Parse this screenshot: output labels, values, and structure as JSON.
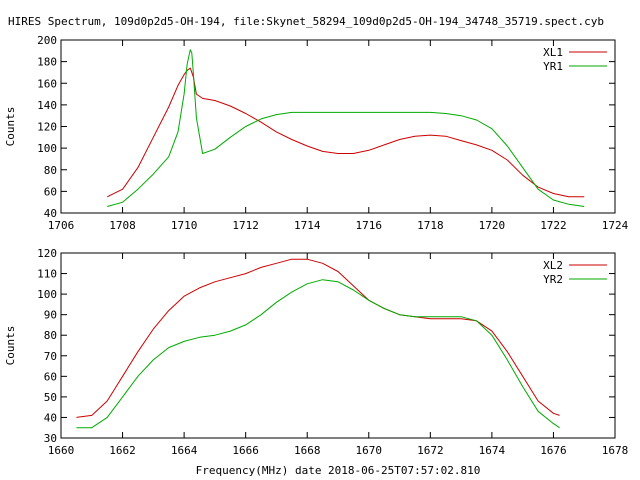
{
  "title": "HIRES Spectrum, 109d0p2d5-OH-194, file:Skynet_58294_109d0p2d5-OH-194_34748_35719.spect.cyb",
  "xlabel": "Frequency(MHz) date 2018-06-25T07:57:02.810",
  "colors": {
    "XL": "#cc0000",
    "YR": "#00aa00",
    "axis": "#000000",
    "background": "#ffffff"
  },
  "chart_data": [
    {
      "type": "line",
      "ylabel": "Counts",
      "xlim": [
        1706,
        1724
      ],
      "ylim": [
        40,
        200
      ],
      "xticks": [
        1706,
        1708,
        1710,
        1712,
        1714,
        1716,
        1718,
        1720,
        1722,
        1724
      ],
      "yticks": [
        40,
        60,
        80,
        100,
        120,
        140,
        160,
        180,
        200
      ],
      "grid": false,
      "legend": "top-right",
      "series": [
        {
          "name": "XL1",
          "color_key": "XL",
          "x": [
            1707.5,
            1708.0,
            1708.5,
            1709.0,
            1709.5,
            1709.8,
            1710.0,
            1710.1,
            1710.2,
            1710.3,
            1710.4,
            1710.6,
            1711.0,
            1711.5,
            1712.0,
            1712.5,
            1713.0,
            1713.5,
            1714.0,
            1714.5,
            1715.0,
            1715.5,
            1716.0,
            1716.5,
            1717.0,
            1717.5,
            1718.0,
            1718.5,
            1719.0,
            1719.5,
            1720.0,
            1720.5,
            1721.0,
            1721.5,
            1722.0,
            1722.5,
            1723.0
          ],
          "y": [
            55,
            62,
            82,
            110,
            138,
            158,
            168,
            172,
            174,
            166,
            150,
            146,
            144,
            139,
            132,
            124,
            115,
            108,
            102,
            97,
            95,
            95,
            98,
            103,
            108,
            111,
            112,
            111,
            107,
            103,
            98,
            89,
            75,
            64,
            58,
            55,
            55
          ]
        },
        {
          "name": "YR1",
          "color_key": "YR",
          "x": [
            1707.5,
            1708.0,
            1708.5,
            1709.0,
            1709.5,
            1709.8,
            1710.0,
            1710.1,
            1710.2,
            1710.25,
            1710.3,
            1710.4,
            1710.6,
            1711.0,
            1711.5,
            1712.0,
            1712.5,
            1713.0,
            1713.5,
            1714.0,
            1715.0,
            1716.0,
            1717.0,
            1718.0,
            1718.5,
            1719.0,
            1719.5,
            1720.0,
            1720.5,
            1721.0,
            1721.5,
            1722.0,
            1722.5,
            1723.0
          ],
          "y": [
            46,
            50,
            62,
            76,
            92,
            115,
            150,
            178,
            191,
            188,
            170,
            128,
            95,
            99,
            110,
            120,
            127,
            131,
            133,
            133,
            133,
            133,
            133,
            133,
            132,
            130,
            126,
            118,
            102,
            82,
            62,
            52,
            48,
            46
          ]
        }
      ]
    },
    {
      "type": "line",
      "ylabel": "Counts",
      "xlim": [
        1660,
        1678
      ],
      "ylim": [
        30,
        120
      ],
      "xticks": [
        1660,
        1662,
        1664,
        1666,
        1668,
        1670,
        1672,
        1674,
        1676,
        1678
      ],
      "yticks": [
        30,
        40,
        50,
        60,
        70,
        80,
        90,
        100,
        110,
        120
      ],
      "grid": false,
      "legend": "top-right",
      "series": [
        {
          "name": "XL2",
          "color_key": "XL",
          "x": [
            1660.5,
            1661.0,
            1661.5,
            1662.0,
            1662.5,
            1663.0,
            1663.5,
            1664.0,
            1664.5,
            1665.0,
            1665.5,
            1666.0,
            1666.5,
            1667.0,
            1667.5,
            1668.0,
            1668.5,
            1669.0,
            1669.5,
            1670.0,
            1670.5,
            1671.0,
            1671.5,
            1672.0,
            1672.5,
            1673.0,
            1673.5,
            1674.0,
            1674.5,
            1675.0,
            1675.5,
            1676.0,
            1676.2
          ],
          "y": [
            40,
            41,
            48,
            60,
            72,
            83,
            92,
            99,
            103,
            106,
            108,
            110,
            113,
            115,
            117,
            117,
            115,
            111,
            104,
            97,
            93,
            90,
            89,
            88,
            88,
            88,
            87,
            82,
            72,
            60,
            48,
            42,
            41
          ]
        },
        {
          "name": "YR2",
          "color_key": "YR",
          "x": [
            1660.5,
            1661.0,
            1661.5,
            1662.0,
            1662.5,
            1663.0,
            1663.5,
            1664.0,
            1664.5,
            1665.0,
            1665.5,
            1666.0,
            1666.5,
            1667.0,
            1667.5,
            1668.0,
            1668.5,
            1669.0,
            1669.5,
            1670.0,
            1670.5,
            1671.0,
            1671.5,
            1672.0,
            1672.5,
            1673.0,
            1673.5,
            1674.0,
            1674.5,
            1675.0,
            1675.5,
            1676.0,
            1676.2
          ],
          "y": [
            35,
            35,
            40,
            50,
            60,
            68,
            74,
            77,
            79,
            80,
            82,
            85,
            90,
            96,
            101,
            105,
            107,
            106,
            102,
            97,
            93,
            90,
            89,
            89,
            89,
            89,
            87,
            80,
            68,
            55,
            43,
            37,
            35
          ]
        }
      ]
    }
  ]
}
